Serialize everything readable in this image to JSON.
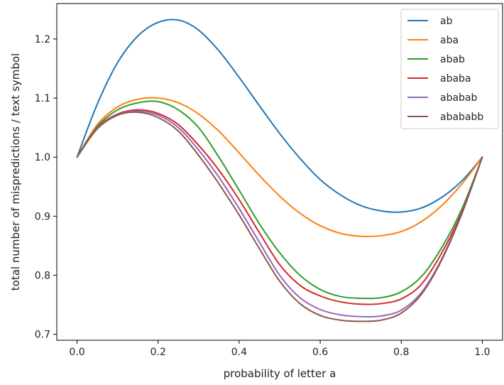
{
  "chart_data": {
    "type": "line",
    "xlabel": "probability of letter a",
    "ylabel": "total number of mispredictions / text symbol",
    "xlim": [
      -0.05,
      1.05
    ],
    "ylim": [
      0.69,
      1.26
    ],
    "x_ticks": [
      0.0,
      0.2,
      0.4,
      0.6,
      0.8,
      1.0
    ],
    "x_tick_labels": [
      "0.0",
      "0.2",
      "0.4",
      "0.6",
      "0.8",
      "1.0"
    ],
    "y_ticks": [
      0.7,
      0.8,
      0.9,
      1.0,
      1.1,
      1.2
    ],
    "y_tick_labels": [
      "0.7",
      "0.8",
      "0.9",
      "1.0",
      "1.1",
      "1.2"
    ],
    "grid": false,
    "legend_position": "top-right",
    "x": [
      0.0,
      0.05,
      0.1,
      0.15,
      0.2,
      0.25,
      0.3,
      0.35,
      0.4,
      0.45,
      0.5,
      0.55,
      0.6,
      0.65,
      0.7,
      0.75,
      0.8,
      0.85,
      0.9,
      0.95,
      1.0
    ],
    "series": [
      {
        "name": "ab",
        "color": "#1f77b4",
        "values": [
          1.0,
          1.09,
          1.16,
          1.205,
          1.228,
          1.232,
          1.215,
          1.18,
          1.135,
          1.087,
          1.04,
          0.998,
          0.962,
          0.936,
          0.918,
          0.909,
          0.907,
          0.914,
          0.932,
          0.96,
          1.0
        ]
      },
      {
        "name": "aba",
        "color": "#ff7f0e",
        "values": [
          1.0,
          1.055,
          1.085,
          1.098,
          1.1,
          1.092,
          1.073,
          1.044,
          1.007,
          0.969,
          0.934,
          0.905,
          0.884,
          0.871,
          0.866,
          0.867,
          0.874,
          0.891,
          0.918,
          0.955,
          1.0
        ]
      },
      {
        "name": "abab",
        "color": "#2ca02c",
        "values": [
          1.0,
          1.052,
          1.08,
          1.092,
          1.094,
          1.08,
          1.05,
          1.0,
          0.944,
          0.887,
          0.838,
          0.8,
          0.776,
          0.764,
          0.761,
          0.762,
          0.772,
          0.798,
          0.847,
          0.913,
          1.0
        ]
      },
      {
        "name": "ababa",
        "color": "#d62728",
        "values": [
          1.0,
          1.05,
          1.073,
          1.08,
          1.074,
          1.055,
          1.02,
          0.978,
          0.928,
          0.872,
          0.818,
          0.783,
          0.765,
          0.755,
          0.751,
          0.752,
          0.76,
          0.785,
          0.838,
          0.908,
          1.0
        ]
      },
      {
        "name": "ababab",
        "color": "#9467bd",
        "values": [
          1.0,
          1.049,
          1.072,
          1.078,
          1.071,
          1.05,
          1.012,
          0.966,
          0.913,
          0.856,
          0.8,
          0.762,
          0.742,
          0.733,
          0.73,
          0.731,
          0.741,
          0.771,
          0.828,
          0.906,
          1.0
        ]
      },
      {
        "name": "abababb",
        "color": "#8c564b",
        "values": [
          1.0,
          1.048,
          1.071,
          1.076,
          1.067,
          1.044,
          1.003,
          0.955,
          0.902,
          0.845,
          0.79,
          0.752,
          0.732,
          0.724,
          0.722,
          0.724,
          0.736,
          0.768,
          0.826,
          0.905,
          1.0
        ]
      }
    ]
  }
}
